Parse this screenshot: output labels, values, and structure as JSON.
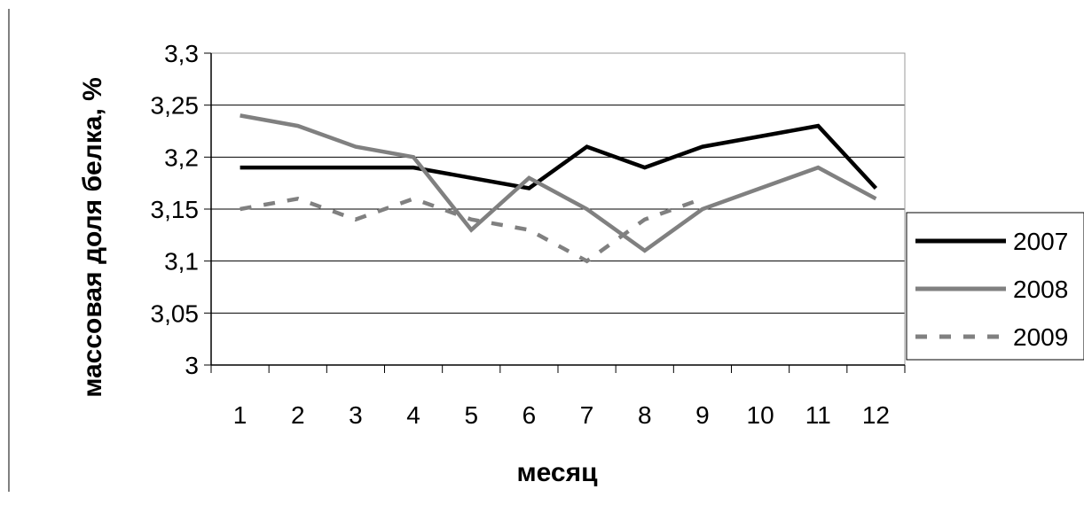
{
  "chart_data": {
    "type": "line",
    "xlabel": "месяц",
    "ylabel": "массовая доля белка, %",
    "categories": [
      "1",
      "2",
      "3",
      "4",
      "5",
      "6",
      "7",
      "8",
      "9",
      "10",
      "11",
      "12"
    ],
    "ylim": [
      3,
      3.3
    ],
    "yticks": [
      {
        "value": 3,
        "label": "3"
      },
      {
        "value": 3.05,
        "label": "3,05"
      },
      {
        "value": 3.1,
        "label": "3,1"
      },
      {
        "value": 3.15,
        "label": "3,15"
      },
      {
        "value": 3.2,
        "label": "3,2"
      },
      {
        "value": 3.25,
        "label": "3,25"
      },
      {
        "value": 3.3,
        "label": "3,3"
      }
    ],
    "grid": "horizontal",
    "legend_position": "right",
    "series": [
      {
        "name": "2007",
        "color": "#000000",
        "dash": "solid",
        "values": [
          3.19,
          3.19,
          3.19,
          3.19,
          3.18,
          3.17,
          3.21,
          3.19,
          3.21,
          3.22,
          3.23,
          3.17
        ]
      },
      {
        "name": "2008",
        "color": "#808080",
        "dash": "solid",
        "values": [
          3.24,
          3.23,
          3.21,
          3.2,
          3.13,
          3.18,
          3.15,
          3.11,
          3.15,
          3.17,
          3.19,
          3.16
        ]
      },
      {
        "name": "2009",
        "color": "#808080",
        "dash": "dashed",
        "values": [
          3.15,
          3.16,
          3.14,
          3.16,
          3.14,
          3.13,
          3.1,
          3.14,
          3.16,
          null,
          null,
          null
        ]
      }
    ]
  }
}
